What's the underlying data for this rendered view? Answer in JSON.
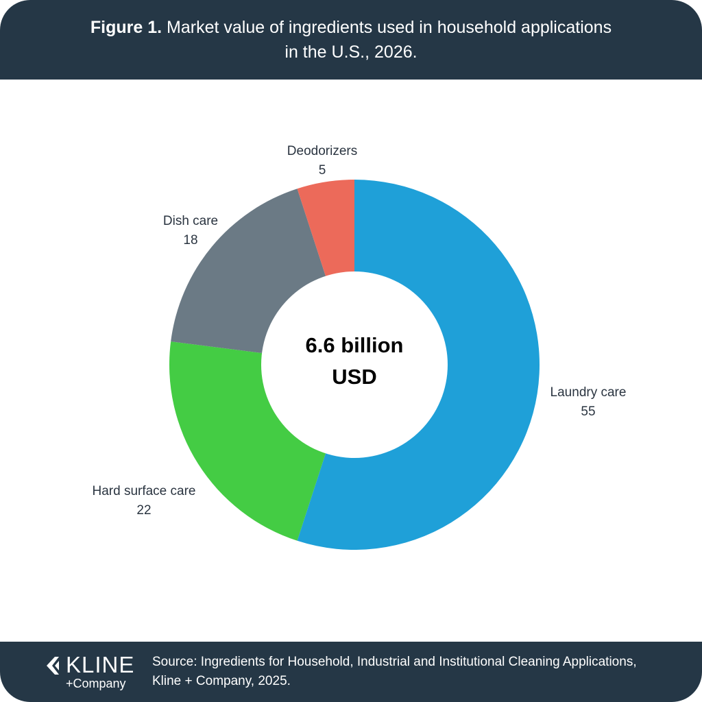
{
  "header": {
    "figure_label": "Figure 1.",
    "title_line1": "Market value of ingredients used in household applications",
    "title_line2": "in the U.S., 2026."
  },
  "chart_data": {
    "type": "pie",
    "title": "Figure 1. Market value of ingredients used in household applications in the U.S., 2026.",
    "center_label_line1": "6.6 billion",
    "center_label_line2": "USD",
    "donut": true,
    "slices": [
      {
        "label": "Laundry care",
        "value": 55,
        "color": "#1fa0d8"
      },
      {
        "label": "Hard surface care",
        "value": 22,
        "color": "#44cc44"
      },
      {
        "label": "Dish care",
        "value": 18,
        "color": "#6b7a85"
      },
      {
        "label": "Deodorizers",
        "value": 5,
        "color": "#ec6a5a"
      }
    ]
  },
  "footer": {
    "logo_word": "KLINE",
    "logo_sub": "+Company",
    "source_line1": "Source: Ingredients for Household, Industrial and Institutional Cleaning Applications,",
    "source_line2": "Kline + Company, 2025."
  },
  "colors": {
    "header_bg": "#253746",
    "footer_bg": "#253746"
  }
}
